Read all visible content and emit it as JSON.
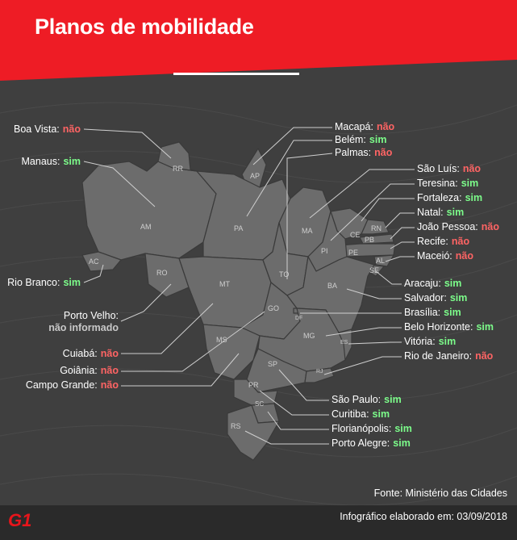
{
  "title": "Planos de mobilidade",
  "colors": {
    "banner": "#ee1c25",
    "map_fill": "#6c6c6c",
    "yes": "#7CFC8A",
    "no": "#FF6464",
    "background": "#3f3f3f"
  },
  "states": [
    "RR",
    "AP",
    "AM",
    "PA",
    "MA",
    "CE",
    "RN",
    "PB",
    "PE",
    "AL",
    "SE",
    "PI",
    "AC",
    "RO",
    "MT",
    "TO",
    "BA",
    "GO",
    "DF",
    "MS",
    "MG",
    "ES",
    "SP",
    "RJ",
    "PR",
    "SC",
    "RS"
  ],
  "cities": [
    {
      "name": "Boa Vista:",
      "status": "não",
      "yes": false
    },
    {
      "name": "Manaus:",
      "status": "sim",
      "yes": true
    },
    {
      "name": "Rio Branco:",
      "status": "sim",
      "yes": true
    },
    {
      "name": "Porto Velho:",
      "status": "não informado",
      "yes": null
    },
    {
      "name": "Cuiabá:",
      "status": "não",
      "yes": false
    },
    {
      "name": "Goiânia:",
      "status": "não",
      "yes": false
    },
    {
      "name": "Campo Grande:",
      "status": "não",
      "yes": false
    },
    {
      "name": "Macapá:",
      "status": "não",
      "yes": false
    },
    {
      "name": "Belém:",
      "status": "sim",
      "yes": true
    },
    {
      "name": "Palmas:",
      "status": "não",
      "yes": false
    },
    {
      "name": "São Luís:",
      "status": "não",
      "yes": false
    },
    {
      "name": "Teresina:",
      "status": "sim",
      "yes": true
    },
    {
      "name": "Fortaleza:",
      "status": "sim",
      "yes": true
    },
    {
      "name": "Natal:",
      "status": "sim",
      "yes": true
    },
    {
      "name": "João Pessoa:",
      "status": "não",
      "yes": false
    },
    {
      "name": "Recife:",
      "status": "não",
      "yes": false
    },
    {
      "name": "Maceió:",
      "status": "não",
      "yes": false
    },
    {
      "name": "Aracaju:",
      "status": "sim",
      "yes": true
    },
    {
      "name": "Salvador:",
      "status": "sim",
      "yes": true
    },
    {
      "name": "Brasília:",
      "status": "sim",
      "yes": true
    },
    {
      "name": "Belo Horizonte:",
      "status": "sim",
      "yes": true
    },
    {
      "name": "Vitória:",
      "status": "sim",
      "yes": true
    },
    {
      "name": "Rio de Janeiro:",
      "status": "não",
      "yes": false
    },
    {
      "name": "São Paulo:",
      "status": "sim",
      "yes": true
    },
    {
      "name": "Curitiba:",
      "status": "sim",
      "yes": true
    },
    {
      "name": "Florianópolis:",
      "status": "sim",
      "yes": true
    },
    {
      "name": "Porto Alegre:",
      "status": "sim",
      "yes": true
    }
  ],
  "source": "Fonte: Ministério das Cidades",
  "brand": "G1",
  "footnote": "Infográfico elaborado em: 03/09/2018"
}
